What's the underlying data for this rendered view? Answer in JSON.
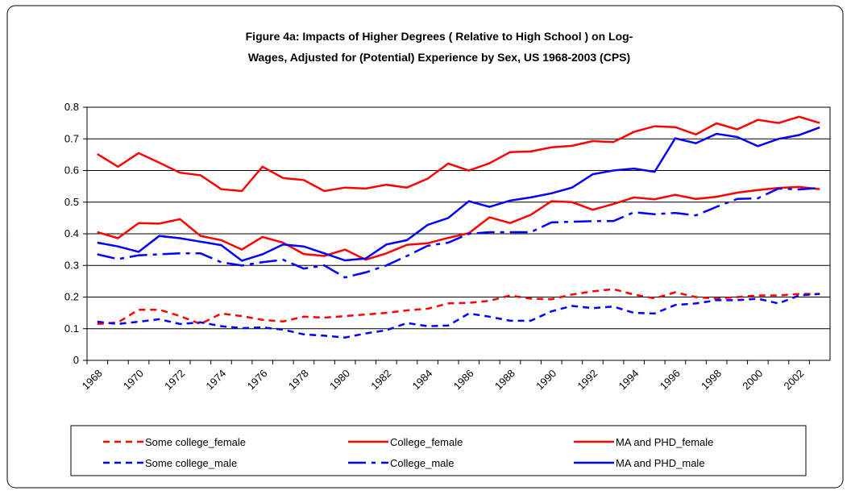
{
  "chart_data": {
    "type": "line",
    "title": [
      "Figure 4a: Impacts of Higher Degrees ( Relative to High School ) on Log-",
      "Wages, Adjusted for (Potential) Experience by Sex, US 1968-2003 (CPS)"
    ],
    "categories": [
      "1968",
      null,
      "1970",
      null,
      "1972",
      null,
      "1974",
      null,
      "1976",
      null,
      "1978",
      null,
      "1980",
      null,
      "1982",
      null,
      "1984",
      null,
      "1986",
      null,
      "1988",
      null,
      "1990",
      null,
      "1992",
      null,
      "1994",
      null,
      "1996",
      null,
      "1998",
      null,
      "2000",
      null,
      "2002",
      null
    ],
    "ylim": [
      0,
      0.8
    ],
    "yticks": [
      0,
      0.1,
      0.2,
      0.3,
      0.4,
      0.5,
      0.6,
      0.7,
      0.8
    ],
    "grid": true,
    "legend": "bottom",
    "series": [
      {
        "name": "Some college_female",
        "color": "#ff0000",
        "dash": "dashed",
        "values": [
          0.115,
          0.12,
          0.16,
          0.16,
          0.14,
          0.115,
          0.148,
          0.14,
          0.128,
          0.123,
          0.138,
          0.135,
          0.14,
          0.145,
          0.15,
          0.158,
          0.163,
          0.18,
          0.182,
          0.188,
          0.205,
          0.195,
          0.193,
          0.208,
          0.218,
          0.225,
          0.208,
          0.196,
          0.215,
          0.2,
          0.195,
          0.2,
          0.205,
          0.205,
          0.21,
          0.21
        ]
      },
      {
        "name": "College_female",
        "color": "#ff0000",
        "dash": "solid",
        "values": [
          0.405,
          0.386,
          0.434,
          0.432,
          0.446,
          0.393,
          0.38,
          0.35,
          0.39,
          0.372,
          0.336,
          0.33,
          0.35,
          0.318,
          0.338,
          0.365,
          0.37,
          0.387,
          0.402,
          0.452,
          0.434,
          0.46,
          0.503,
          0.5,
          0.476,
          0.494,
          0.515,
          0.509,
          0.523,
          0.51,
          0.517,
          0.53,
          0.538,
          0.545,
          0.548,
          0.541
        ]
      },
      {
        "name": "MA and PHD_female",
        "color": "#ff0000",
        "dash": "solid",
        "values": [
          0.652,
          0.612,
          0.655,
          0.625,
          0.593,
          0.585,
          0.541,
          0.535,
          0.612,
          0.576,
          0.57,
          0.535,
          0.546,
          0.543,
          0.555,
          0.546,
          0.574,
          0.622,
          0.6,
          0.623,
          0.658,
          0.66,
          0.673,
          0.678,
          0.693,
          0.69,
          0.722,
          0.74,
          0.737,
          0.714,
          0.749,
          0.73,
          0.76,
          0.75,
          0.77,
          0.75
        ]
      },
      {
        "name": "Some college_male",
        "color": "#0000ff",
        "dash": "dashed",
        "values": [
          0.122,
          0.115,
          0.122,
          0.13,
          0.115,
          0.12,
          0.108,
          0.102,
          0.104,
          0.097,
          0.082,
          0.078,
          0.072,
          0.085,
          0.095,
          0.118,
          0.108,
          0.11,
          0.148,
          0.138,
          0.125,
          0.125,
          0.155,
          0.172,
          0.165,
          0.17,
          0.15,
          0.148,
          0.175,
          0.18,
          0.19,
          0.19,
          0.195,
          0.18,
          0.205,
          0.21
        ]
      },
      {
        "name": "College_male",
        "color": "#0000ff",
        "dash": "longdash",
        "values": [
          0.335,
          0.32,
          0.332,
          0.335,
          0.338,
          0.338,
          0.31,
          0.3,
          0.31,
          0.318,
          0.29,
          0.3,
          0.262,
          0.278,
          0.3,
          0.33,
          0.362,
          0.372,
          0.4,
          0.405,
          0.405,
          0.405,
          0.436,
          0.438,
          0.44,
          0.44,
          0.468,
          0.462,
          0.466,
          0.458,
          0.485,
          0.51,
          0.512,
          0.543,
          0.54,
          0.545
        ]
      },
      {
        "name": "MA and PHD_male",
        "color": "#0000ff",
        "dash": "solid",
        "values": [
          0.372,
          0.36,
          0.343,
          0.393,
          0.386,
          0.375,
          0.364,
          0.315,
          0.335,
          0.366,
          0.36,
          0.338,
          0.316,
          0.322,
          0.366,
          0.38,
          0.428,
          0.45,
          0.503,
          0.485,
          0.505,
          0.515,
          0.528,
          0.546,
          0.588,
          0.6,
          0.606,
          0.596,
          0.702,
          0.686,
          0.716,
          0.706,
          0.677,
          0.7,
          0.712,
          0.736
        ]
      }
    ]
  }
}
